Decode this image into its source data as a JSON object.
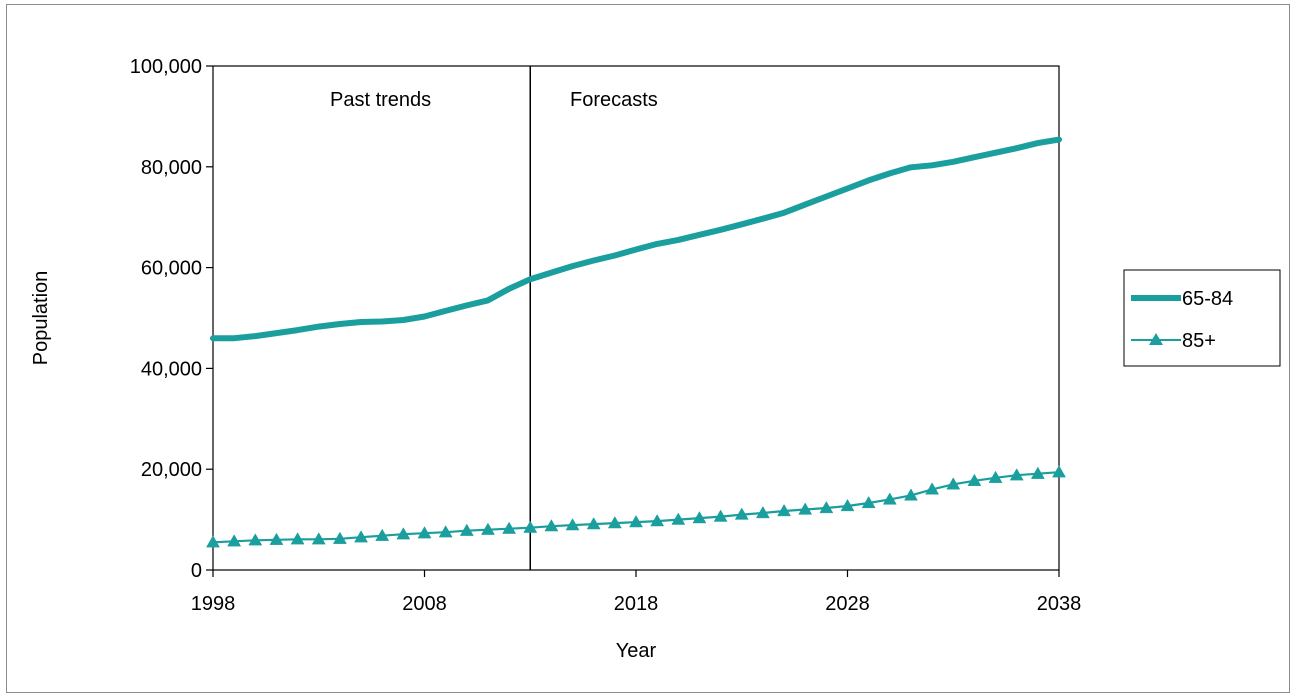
{
  "chart_data": {
    "type": "line",
    "title": "",
    "xlabel": "Year",
    "ylabel": "Population",
    "xlim": [
      1998,
      2038
    ],
    "ylim": [
      0,
      100000
    ],
    "x_ticks": [
      1998,
      2008,
      2018,
      2028,
      2038
    ],
    "x_tick_labels": [
      "1998",
      "2008",
      "2018",
      "2028",
      "2038"
    ],
    "y_ticks": [
      0,
      20000,
      40000,
      60000,
      80000,
      100000
    ],
    "y_tick_labels": [
      "0",
      "20,000",
      "40,000",
      "60,000",
      "80,000",
      "100,000"
    ],
    "grid": false,
    "legend_position": "right",
    "divider_x": 2013,
    "annotations": [
      {
        "text": "Past trends",
        "region": "left of divider"
      },
      {
        "text": "Forecasts",
        "region": "right of divider"
      }
    ],
    "x": [
      1998,
      1999,
      2000,
      2001,
      2002,
      2003,
      2004,
      2005,
      2006,
      2007,
      2008,
      2009,
      2010,
      2011,
      2012,
      2013,
      2014,
      2015,
      2016,
      2017,
      2018,
      2019,
      2020,
      2021,
      2022,
      2023,
      2024,
      2025,
      2026,
      2027,
      2028,
      2029,
      2030,
      2031,
      2032,
      2033,
      2034,
      2035,
      2036,
      2037,
      2038
    ],
    "series": [
      {
        "name": "65-84",
        "color": "#1a9e9e",
        "style": "thick-line",
        "values": [
          46000,
          46000,
          46400,
          47000,
          47600,
          48300,
          48800,
          49200,
          49300,
          49600,
          50300,
          51400,
          52500,
          53500,
          55800,
          57700,
          59000,
          60300,
          61400,
          62400,
          63600,
          64700,
          65500,
          66500,
          67500,
          68600,
          69700,
          70900,
          72500,
          74100,
          75700,
          77300,
          78700,
          79900,
          80300,
          81000,
          81900,
          82800,
          83700,
          84700,
          85400
        ]
      },
      {
        "name": "85+",
        "color": "#1a9e9e",
        "style": "line-triangle-markers",
        "values": [
          5500,
          5700,
          5900,
          6000,
          6100,
          6100,
          6200,
          6500,
          6800,
          7100,
          7300,
          7500,
          7800,
          8000,
          8200,
          8400,
          8700,
          8900,
          9100,
          9300,
          9500,
          9700,
          10000,
          10300,
          10600,
          11000,
          11300,
          11700,
          12000,
          12300,
          12700,
          13300,
          14000,
          14800,
          16000,
          17000,
          17700,
          18300,
          18800,
          19100,
          19400
        ]
      }
    ]
  }
}
